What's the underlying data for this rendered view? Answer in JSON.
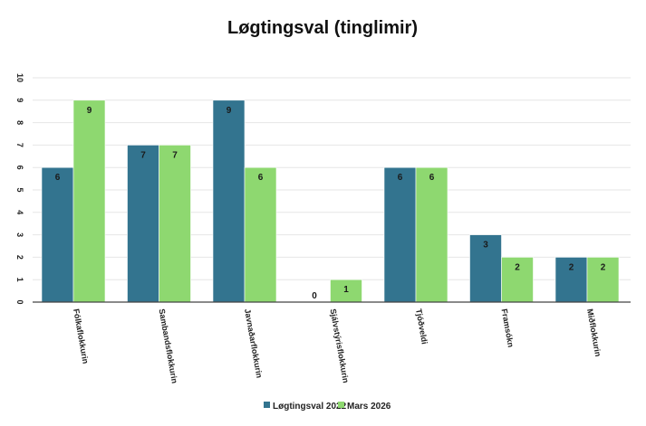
{
  "chart_data": {
    "type": "bar",
    "title": "Løgtingsval (tinglimir)",
    "xlabel": "",
    "ylabel": "",
    "categories": [
      "Fólkaflokkurin",
      "Sambandsflokkurin",
      "Javnaðarflokkurin",
      "Sjálvstýrisflokkurin",
      "Tjóðveldi",
      "Framsókn",
      "Miðflokkurin"
    ],
    "series": [
      {
        "name": "Løgtingsval 2022",
        "values": [
          6,
          7,
          9,
          0,
          6,
          3,
          2
        ],
        "color": "#33748f"
      },
      {
        "name": "Mars 2026",
        "values": [
          9,
          7,
          6,
          1,
          6,
          2,
          2
        ],
        "color": "#8ed870"
      }
    ],
    "ylim": [
      0,
      10
    ],
    "yticks": [
      "0",
      "1",
      "2",
      "3",
      "4",
      "5",
      "6",
      "7",
      "8",
      "9",
      "10"
    ],
    "grid": true,
    "legend_position": "bottom"
  }
}
